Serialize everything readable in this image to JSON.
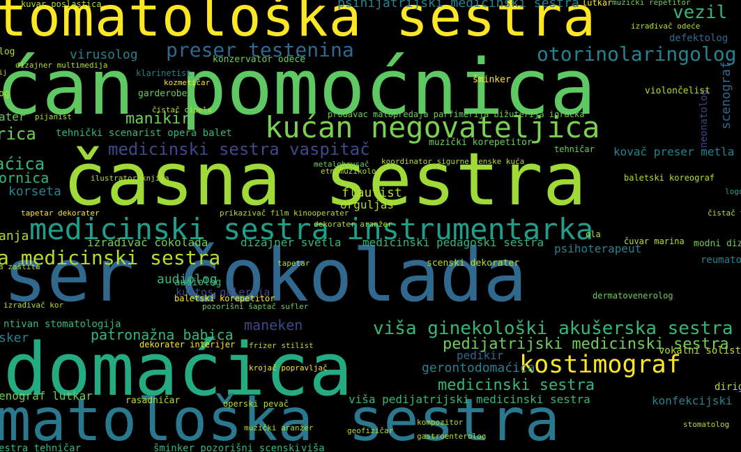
{
  "palette": {
    "yellow": "#fde725",
    "lime": "#b5de2b",
    "green": "#6ece58",
    "teal_green": "#35b779",
    "teal": "#1f9e89",
    "cyan_blue": "#26828e",
    "blue": "#31688e",
    "indigo": "#3e4989",
    "purple": "#482878",
    "dark": "#440154"
  },
  "words": [
    {
      "id": "w01",
      "text": "tomatološka sestra"
    },
    {
      "id": "w02",
      "text": "ćan pomoćnica"
    },
    {
      "id": "w03",
      "text": "časna sestra"
    },
    {
      "id": "w04",
      "text": "eser čokolada"
    },
    {
      "id": "w05",
      "text": "domaćica"
    },
    {
      "id": "w06",
      "text": "matološka sestra"
    },
    {
      "id": "w07",
      "text": "medicinski sestra instrumentarka"
    },
    {
      "id": "w08",
      "text": "kućan negovateljica"
    },
    {
      "id": "w09",
      "text": "preser testenina"
    },
    {
      "id": "w10",
      "text": "otorinolaringolog"
    },
    {
      "id": "w11",
      "text": "kostimograf"
    },
    {
      "id": "w12",
      "text": "viša ginekološki akušerska sestra"
    },
    {
      "id": "w13",
      "text": "pedijatrijski medicinski sestra"
    },
    {
      "id": "w14",
      "text": "medicinski sestra vaspitač"
    },
    {
      "id": "w15",
      "text": "a medicinski sestra"
    },
    {
      "id": "w16",
      "text": "medicinski sestra"
    },
    {
      "id": "w17",
      "text": "patronažna babica"
    },
    {
      "id": "w18",
      "text": "viša pedijatrijski medicinski sestra"
    },
    {
      "id": "w19",
      "text": "psihijatrijski medicinski sestra"
    },
    {
      "id": "w20",
      "text": "manikir"
    },
    {
      "id": "w21",
      "text": "vezil"
    },
    {
      "id": "w22",
      "text": "virusolog"
    },
    {
      "id": "w23",
      "text": "defektolog"
    },
    {
      "id": "w24",
      "text": "izrađivač čokolada"
    },
    {
      "id": "w25",
      "text": "dizajner svetla"
    },
    {
      "id": "w26",
      "text": "medicinski pedagoški sestra"
    },
    {
      "id": "w27",
      "text": "psihoterapeut"
    },
    {
      "id": "w28",
      "text": "audiolog"
    },
    {
      "id": "w29",
      "text": "flautist"
    },
    {
      "id": "w30",
      "text": "orguljaš"
    },
    {
      "id": "w31",
      "text": "korseta"
    },
    {
      "id": "w32",
      "text": "ornica"
    },
    {
      "id": "w33",
      "text": "anja"
    },
    {
      "id": "w34",
      "text": "rica"
    },
    {
      "id": "w35",
      "text": "tehnički scenarist opera balet"
    },
    {
      "id": "w36",
      "text": "kovač preser metla"
    },
    {
      "id": "w37",
      "text": "scenograf"
    },
    {
      "id": "w38",
      "text": "neonatolog"
    },
    {
      "id": "w39",
      "text": "muzički korepetitor"
    },
    {
      "id": "w40",
      "text": "gerontodomaćica"
    },
    {
      "id": "w41",
      "text": "pedikir"
    },
    {
      "id": "w42",
      "text": "enograf lutkar"
    },
    {
      "id": "w43",
      "text": "konfekcijski"
    },
    {
      "id": "w44",
      "text": "dirige"
    },
    {
      "id": "w45",
      "text": "estra tehničar"
    },
    {
      "id": "w46",
      "text": "šminker pozorišni scenski"
    },
    {
      "id": "w47",
      "text": "viša"
    },
    {
      "id": "w48",
      "text": "dermatovenerolog"
    },
    {
      "id": "w49",
      "text": "reumatolog"
    },
    {
      "id": "w50",
      "text": "scenski dekorater"
    },
    {
      "id": "w51",
      "text": "kustos galerija"
    },
    {
      "id": "w52",
      "text": "maneken"
    },
    {
      "id": "w53",
      "text": "dekorater interijer"
    },
    {
      "id": "w54",
      "text": "vokalni solist"
    },
    {
      "id": "w55",
      "text": "rasadničar"
    },
    {
      "id": "w56",
      "text": "operski pevač"
    },
    {
      "id": "w57",
      "text": "konzervator odeće"
    },
    {
      "id": "w58",
      "text": "garderober"
    },
    {
      "id": "w59",
      "text": "čistač cipela"
    },
    {
      "id": "w60",
      "text": "dizajner multimedija"
    },
    {
      "id": "w61",
      "text": "klarinetist"
    },
    {
      "id": "w62",
      "text": "prodavac malopredaja parfimerija bižuterija igračka"
    },
    {
      "id": "w63",
      "text": "koordinator sigurne ženske kuća"
    },
    {
      "id": "w64",
      "text": "baletski koreograf"
    },
    {
      "id": "w65",
      "text": "logoped"
    },
    {
      "id": "w66",
      "text": "čistač tepih"
    },
    {
      "id": "w67",
      "text": "modni dize"
    },
    {
      "id": "w68",
      "text": "ntivan stomatologija"
    },
    {
      "id": "w69",
      "text": "sker"
    },
    {
      "id": "w70",
      "text": "čuvar marina"
    },
    {
      "id": "w71",
      "text": "a zaštita"
    },
    {
      "id": "w72",
      "text": "izrađivač kor"
    },
    {
      "id": "w73",
      "text": "ilustrator knjiga"
    },
    {
      "id": "w74",
      "text": "tapetar dekorater"
    },
    {
      "id": "w75",
      "text": "kozmetičar"
    },
    {
      "id": "w76",
      "text": "metalobrusač"
    },
    {
      "id": "w77",
      "text": "etnomuzikolog"
    },
    {
      "id": "w78",
      "text": "šminker"
    },
    {
      "id": "w79",
      "text": "violončelist"
    },
    {
      "id": "w80",
      "text": "geofizičar"
    },
    {
      "id": "w81",
      "text": "kompozitor"
    },
    {
      "id": "w82",
      "text": "gastroenterolog"
    },
    {
      "id": "w83",
      "text": "tehničar"
    },
    {
      "id": "w84",
      "text": "aćica"
    },
    {
      "id": "w85",
      "text": "ater"
    },
    {
      "id": "w86",
      "text": "pijanist"
    },
    {
      "id": "w87",
      "text": "kuvar poslastica"
    },
    {
      "id": "w88",
      "text": "lutkar"
    },
    {
      "id": "w89",
      "text": "muzički repetitor"
    },
    {
      "id": "w90",
      "text": "izrađivač odeće"
    },
    {
      "id": "w91",
      "text": "stomatolog"
    },
    {
      "id": "w92",
      "text": "muzički aranžer"
    },
    {
      "id": "w93",
      "text": "krojač popravljač"
    },
    {
      "id": "w94",
      "text": "baletski korepetitor"
    },
    {
      "id": "w95",
      "text": "pozorišni šaptač sufler"
    },
    {
      "id": "w96",
      "text": "frizer stilist"
    },
    {
      "id": "w97",
      "text": "prikazivač film kinooperater"
    },
    {
      "id": "w98",
      "text": "dekorater aranžer"
    },
    {
      "id": "w99",
      "text": "tapetar"
    },
    {
      "id": "w100",
      "text": "audiolog"
    },
    {
      "id": "w101",
      "text": "log"
    },
    {
      "id": "w102",
      "text": "og"
    },
    {
      "id": "w103",
      "text": "ola"
    },
    {
      "id": "w104",
      "text": "ij"
    }
  ]
}
